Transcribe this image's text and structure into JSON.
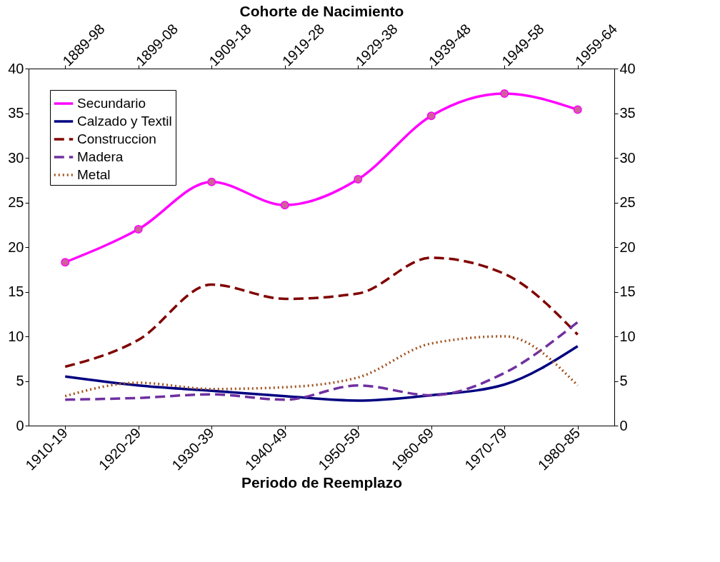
{
  "chart_data": {
    "type": "line",
    "xlabel": "Periodo de Reemplazo",
    "x2label": "Cohorte de Nacimiento",
    "categories": [
      "1910-19",
      "1920-29",
      "1930-39",
      "1940-49",
      "1950-59",
      "1960-69",
      "1970-79",
      "1980-85"
    ],
    "annotations": [
      "1889-98",
      "1899-08",
      "1909-18",
      "1919-28",
      "1929-38",
      "1939-48",
      "1949-58",
      "1959-64"
    ],
    "ylim": [
      0,
      40
    ],
    "yticks": [
      0,
      5,
      10,
      15,
      20,
      25,
      30,
      35,
      40
    ],
    "y2lim": [
      0,
      40
    ],
    "y2ticks": [
      0,
      5,
      10,
      15,
      20,
      25,
      30,
      35,
      40
    ],
    "grid": false,
    "legend": "top left",
    "series": [
      {
        "name": "Secundario",
        "color": "#ff00ff",
        "marker": "circle",
        "line_style": "solid",
        "values": [
          18.3,
          22.0,
          27.3,
          24.7,
          27.6,
          34.7,
          37.2,
          35.4
        ]
      },
      {
        "name": "Calzado y Textil",
        "color": "#000080",
        "marker": "none",
        "line_style": "solid",
        "values": [
          5.5,
          4.5,
          3.9,
          3.3,
          2.8,
          3.4,
          4.6,
          8.9
        ]
      },
      {
        "name": "Construccion",
        "color": "#800000",
        "marker": "none",
        "line_style": "dashed",
        "values": [
          6.6,
          9.6,
          15.8,
          14.2,
          14.8,
          18.8,
          17.0,
          10.2
        ]
      },
      {
        "name": "Madera",
        "color": "#7030a0",
        "marker": "none",
        "line_style": "dashed",
        "values": [
          2.9,
          3.1,
          3.5,
          2.9,
          4.5,
          3.4,
          5.9,
          11.6
        ]
      },
      {
        "name": "Metal",
        "color": "#a0521e",
        "marker": "none",
        "line_style": "dotted",
        "values": [
          3.3,
          4.8,
          4.1,
          4.3,
          5.4,
          9.2,
          10.0,
          4.5
        ]
      }
    ]
  }
}
